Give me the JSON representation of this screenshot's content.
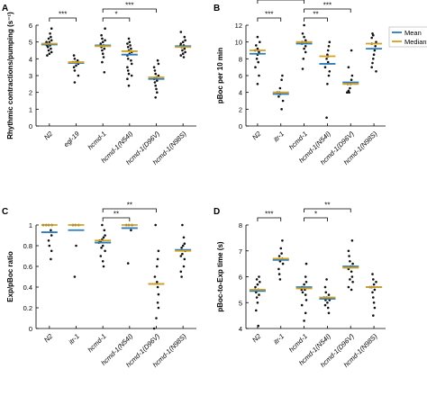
{
  "figure": {
    "legend_labels": [
      "Mean",
      "Median"
    ],
    "legend_colors": [
      "#2b7bbd",
      "#d4a020"
    ]
  },
  "chart_data": [
    {
      "type": "scatter",
      "panel_label": "A",
      "ylabel": "Rhythmic contractions/pumping (s⁻¹)",
      "ylim": [
        0,
        6
      ],
      "yticks": [
        0,
        1,
        2,
        3,
        4,
        5,
        6
      ],
      "categories": [
        "N2",
        "egl-19",
        "hcmd-1",
        "hcmd-1(N54I)",
        "hcmd-1(D96V)",
        "hcmd-1(N98S)"
      ],
      "means": [
        4.85,
        3.75,
        4.8,
        4.25,
        2.8,
        4.75
      ],
      "medians": [
        4.9,
        3.8,
        4.75,
        4.45,
        2.9,
        4.7
      ],
      "points": [
        [
          5.8,
          5.5,
          5.3,
          5.2,
          5.1,
          5.0,
          5.0,
          4.9,
          4.9,
          4.85,
          4.8,
          4.8,
          4.7,
          4.6,
          4.5,
          4.4,
          4.3,
          4.2
        ],
        [
          4.2,
          4.0,
          3.9,
          3.8,
          3.8,
          3.7,
          3.6,
          3.5,
          3.3,
          3.0,
          2.6
        ],
        [
          5.8,
          5.4,
          5.2,
          5.1,
          5.0,
          4.9,
          4.8,
          4.8,
          4.7,
          4.6,
          4.5,
          4.3,
          4.1,
          3.8,
          3.2
        ],
        [
          5.2,
          5.0,
          4.9,
          4.8,
          4.7,
          4.6,
          4.5,
          4.4,
          4.3,
          4.2,
          4.0,
          3.9,
          3.7,
          3.5,
          3.3,
          3.1,
          3.0,
          2.8,
          2.4
        ],
        [
          3.9,
          3.7,
          3.5,
          3.3,
          3.1,
          3.0,
          2.9,
          2.8,
          2.7,
          2.6,
          2.4,
          2.2,
          2.0,
          1.7
        ],
        [
          5.6,
          5.3,
          5.1,
          5.0,
          4.9,
          4.8,
          4.8,
          4.7,
          4.6,
          4.5,
          4.4,
          4.3,
          4.2,
          4.1
        ]
      ],
      "brackets": [
        {
          "from": 0,
          "to": 1,
          "label": "***",
          "level": 0
        },
        {
          "from": 2,
          "to": 3,
          "label": "*",
          "level": 0
        },
        {
          "from": 2,
          "to": 4,
          "label": "***",
          "level": 1
        }
      ]
    },
    {
      "type": "scatter",
      "panel_label": "B",
      "ylabel": "pBoc per 10 min",
      "ylim": [
        0,
        12
      ],
      "yticks": [
        0,
        2,
        4,
        6,
        8,
        10,
        12
      ],
      "categories": [
        "N2",
        "itr-1",
        "hcmd-1",
        "hcmd-1(N54I)",
        "hcmd-1(D96V)",
        "hcmd-1(N98S)"
      ],
      "means": [
        8.6,
        3.8,
        9.8,
        7.4,
        5.2,
        9.2
      ],
      "medians": [
        9.0,
        4.0,
        10.0,
        8.3,
        5.0,
        9.8
      ],
      "points": [
        [
          10.6,
          10.0,
          9.6,
          9.2,
          9.0,
          9.0,
          8.8,
          8.5,
          8.0,
          7.6,
          7.0,
          6.0,
          5.0
        ],
        [
          6.0,
          5.5,
          4.5,
          4.0,
          4.0,
          3.8,
          3.5,
          3.0,
          2.0
        ],
        [
          12.0,
          11.0,
          10.6,
          10.2,
          10.0,
          10.0,
          9.8,
          9.5,
          9.2,
          8.8,
          8.0,
          6.8
        ],
        [
          10.0,
          9.5,
          9.0,
          8.5,
          8.3,
          8.0,
          7.6,
          7.0,
          6.5,
          6.0,
          5.0,
          1.0
        ],
        [
          9.0,
          7.0,
          6.0,
          5.5,
          5.0,
          5.0,
          4.5,
          4.2,
          4.0,
          4.0
        ],
        [
          11.0,
          10.8,
          10.5,
          10.0,
          9.8,
          9.5,
          9.0,
          8.5,
          8.0,
          7.5,
          7.0,
          6.5
        ]
      ],
      "brackets": [
        {
          "from": 0,
          "to": 1,
          "label": "***",
          "level": 0
        },
        {
          "from": 2,
          "to": 3,
          "label": "**",
          "level": 0
        },
        {
          "from": 2,
          "to": 4,
          "label": "***",
          "level": 1
        },
        {
          "from": 0,
          "to": 2,
          "label": "*",
          "level": 2
        }
      ],
      "legend": true
    },
    {
      "type": "scatter",
      "panel_label": "C",
      "ylabel": "Exp/pBoc ratio",
      "ylim": [
        0,
        1
      ],
      "yticks": [
        0,
        0.2,
        0.4,
        0.6,
        0.8,
        1
      ],
      "categories": [
        "N2",
        "itr-1",
        "hcmd-1",
        "hcmd-1(N54I)",
        "hcmd-1(D96V)",
        "hcmd-1(N98S)"
      ],
      "means": [
        0.93,
        0.95,
        0.83,
        0.97,
        0.43,
        0.76
      ],
      "medians": [
        1.0,
        1.0,
        0.85,
        1.0,
        0.43,
        0.75
      ],
      "points": [
        [
          1.0,
          1.0,
          1.0,
          1.0,
          0.95,
          0.9,
          0.85,
          0.8,
          0.75,
          0.67
        ],
        [
          1.0,
          1.0,
          1.0,
          0.8,
          0.5
        ],
        [
          1.0,
          0.95,
          0.9,
          0.88,
          0.86,
          0.85,
          0.84,
          0.83,
          0.8,
          0.78,
          0.75,
          0.7,
          0.65,
          0.6
        ],
        [
          1.0,
          1.0,
          1.0,
          0.95,
          0.63
        ],
        [
          1.0,
          0.75,
          0.67,
          0.6,
          0.5,
          0.45,
          0.4,
          0.33,
          0.25,
          0.2,
          0.1,
          0.0
        ],
        [
          1.0,
          0.88,
          0.82,
          0.8,
          0.78,
          0.75,
          0.72,
          0.7,
          0.67,
          0.6,
          0.55,
          0.5
        ]
      ],
      "brackets": [
        {
          "from": 2,
          "to": 3,
          "label": "**",
          "level": 0
        },
        {
          "from": 2,
          "to": 4,
          "label": "**",
          "level": 1
        }
      ]
    },
    {
      "type": "scatter",
      "panel_label": "D",
      "ylabel": "pBoc-to-Exp time (s)",
      "ylim": [
        4,
        8
      ],
      "yticks": [
        4,
        5,
        6,
        7,
        8
      ],
      "categories": [
        "N2",
        "itr-1",
        "hcmd-1",
        "hcmd-1(N54I)",
        "hcmd-1(D96V)",
        "hcmd-1(N98S)"
      ],
      "means": [
        5.45,
        6.65,
        5.6,
        5.15,
        6.4,
        5.6
      ],
      "medians": [
        5.5,
        6.7,
        5.55,
        5.2,
        6.35,
        5.6
      ],
      "points": [
        [
          6.0,
          5.9,
          5.8,
          5.7,
          5.6,
          5.5,
          5.5,
          5.4,
          5.3,
          5.2,
          5.0,
          4.7,
          4.1
        ],
        [
          7.4,
          7.1,
          6.9,
          6.8,
          6.7,
          6.6,
          6.5,
          6.3,
          6.1,
          5.9
        ],
        [
          6.5,
          6.0,
          5.8,
          5.7,
          5.6,
          5.5,
          5.5,
          5.4,
          5.3,
          5.1,
          4.9,
          4.6,
          4.3
        ],
        [
          5.9,
          5.6,
          5.4,
          5.3,
          5.2,
          5.2,
          5.1,
          5.1,
          5.0,
          4.9,
          4.8,
          4.6
        ],
        [
          7.4,
          7.0,
          6.8,
          6.6,
          6.5,
          6.4,
          6.3,
          6.2,
          6.0,
          5.9,
          5.8,
          5.6,
          5.5
        ],
        [
          6.1,
          5.9,
          5.8,
          5.7,
          5.6,
          5.6,
          5.5,
          5.4,
          5.2,
          5.0,
          4.8,
          4.5
        ]
      ],
      "brackets": [
        {
          "from": 0,
          "to": 1,
          "label": "***",
          "level": 0
        },
        {
          "from": 2,
          "to": 3,
          "label": "*",
          "level": 0
        },
        {
          "from": 2,
          "to": 4,
          "label": "**",
          "level": 1
        }
      ]
    }
  ]
}
